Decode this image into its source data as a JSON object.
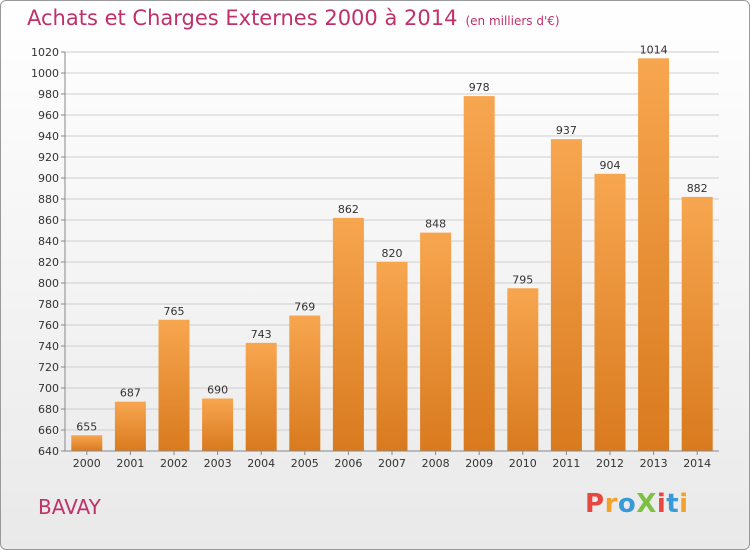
{
  "chart_data": {
    "type": "bar",
    "title": "Achats et Charges Externes 2000 à 2014",
    "subtitle": "(en milliers d'€)",
    "categories": [
      "2000",
      "2001",
      "2002",
      "2003",
      "2004",
      "2005",
      "2006",
      "2007",
      "2008",
      "2009",
      "2010",
      "2011",
      "2012",
      "2013",
      "2014"
    ],
    "values": [
      655,
      687,
      765,
      690,
      743,
      769,
      862,
      820,
      848,
      978,
      795,
      937,
      904,
      1014,
      882
    ],
    "ylim": [
      640,
      1020
    ],
    "yticks": [
      640,
      660,
      680,
      700,
      720,
      740,
      760,
      780,
      800,
      820,
      840,
      860,
      880,
      900,
      920,
      940,
      960,
      980,
      1000,
      1020
    ],
    "grid": true,
    "bar_color_top": "#f7a650",
    "bar_color_bottom": "#d97a1e"
  },
  "footer": {
    "commune": "BAVAY",
    "logo_text": "ProXiti",
    "logo_colors": [
      "#e8473f",
      "#f2a12b",
      "#3a9ad9",
      "#7cc142",
      "#e8473f",
      "#3a9ad9",
      "#f2a12b"
    ]
  }
}
